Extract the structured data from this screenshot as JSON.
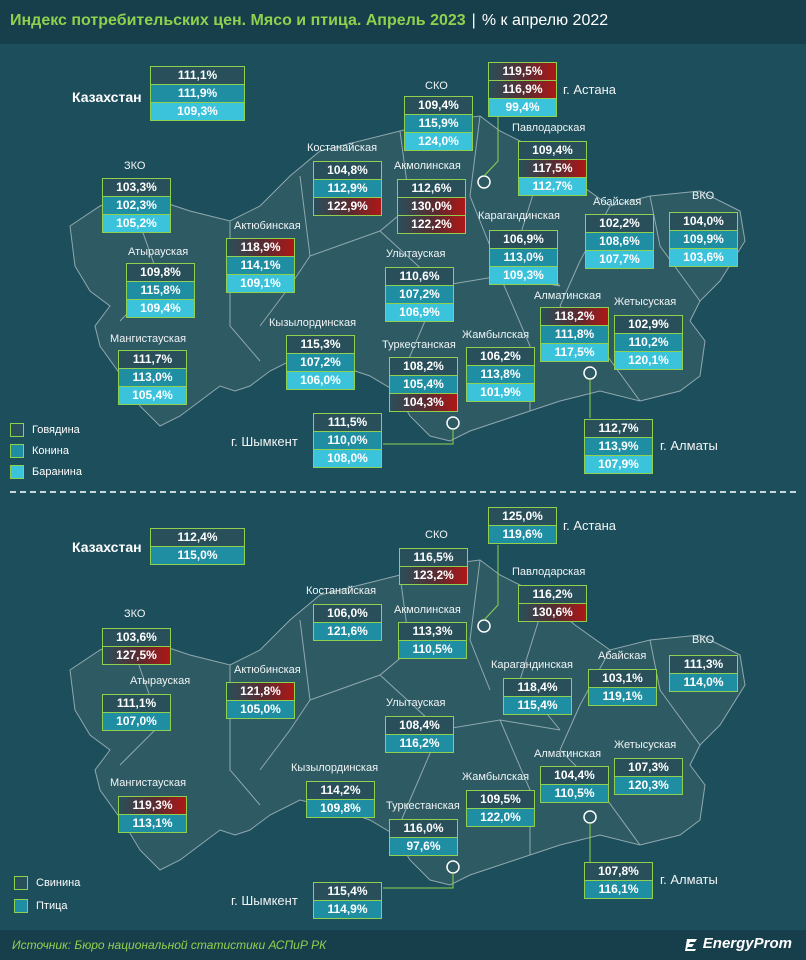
{
  "header": {
    "title": "Индекс потребительских цен. Мясо и птица. Апрель 2023",
    "separator": "|",
    "subtitle": "% к апрелю 2022"
  },
  "top_map": {
    "legend": [
      "Говядина",
      "Конина",
      "Баранина"
    ],
    "kazakhstan": {
      "label": "Казахстан",
      "values": [
        "111,1%",
        "111,9%",
        "109,3%"
      ]
    },
    "regions": [
      {
        "id": "zko",
        "name": "ЗКО",
        "values": [
          "103,3%",
          "102,3%",
          "105,2%"
        ]
      },
      {
        "id": "atyrau",
        "name": "Атырауская",
        "values": [
          "109,8%",
          "115,8%",
          "109,4%"
        ]
      },
      {
        "id": "mangystau",
        "name": "Мангистауская",
        "values": [
          "111,7%",
          "113,0%",
          "105,4%"
        ]
      },
      {
        "id": "aktobe",
        "name": "Актюбинская",
        "values": [
          "118,9%",
          "114,1%",
          "109,1%"
        ]
      },
      {
        "id": "kostanay",
        "name": "Костанайская",
        "values": [
          "104,8%",
          "112,9%",
          "122,9%"
        ]
      },
      {
        "id": "sko",
        "name": "СКО",
        "values": [
          "109,4%",
          "115,9%",
          "124,0%"
        ]
      },
      {
        "id": "akmola",
        "name": "Акмолинская",
        "values": [
          "112,6%",
          "130,0%",
          "122,2%"
        ]
      },
      {
        "id": "astana",
        "name": "г. Астана",
        "values": [
          "119,5%",
          "116,9%",
          "99,4%"
        ]
      },
      {
        "id": "pavlodar",
        "name": "Павлодарская",
        "values": [
          "109,4%",
          "117,5%",
          "112,7%"
        ]
      },
      {
        "id": "abay",
        "name": "Абайская",
        "values": [
          "102,2%",
          "108,6%",
          "107,7%"
        ]
      },
      {
        "id": "vko",
        "name": "ВКО",
        "values": [
          "104,0%",
          "109,9%",
          "103,6%"
        ]
      },
      {
        "id": "karaganda",
        "name": "Карагандинская",
        "values": [
          "106,9%",
          "113,0%",
          "109,3%"
        ]
      },
      {
        "id": "ulytau",
        "name": "Улытауская",
        "values": [
          "110,6%",
          "107,2%",
          "106,9%"
        ]
      },
      {
        "id": "kyzylorda",
        "name": "Кызылординская",
        "values": [
          "115,3%",
          "107,2%",
          "106,0%"
        ]
      },
      {
        "id": "turkestan",
        "name": "Туркестанская",
        "values": [
          "108,2%",
          "105,4%",
          "104,3%"
        ]
      },
      {
        "id": "zhambyl",
        "name": "Жамбылская",
        "values": [
          "106,2%",
          "113,8%",
          "101,9%"
        ]
      },
      {
        "id": "almaty_reg",
        "name": "Алматинская",
        "values": [
          "118,2%",
          "111,8%",
          "117,5%"
        ]
      },
      {
        "id": "zhetysu",
        "name": "Жетысуская",
        "values": [
          "102,9%",
          "110,2%",
          "120,1%"
        ]
      },
      {
        "id": "shymkent",
        "name": "г. Шымкент",
        "values": [
          "111,5%",
          "110,0%",
          "108,0%"
        ]
      },
      {
        "id": "almaty",
        "name": "г. Алматы",
        "values": [
          "112,7%",
          "113,9%",
          "107,9%"
        ]
      }
    ]
  },
  "bottom_map": {
    "legend": [
      "Свинина",
      "Птица"
    ],
    "kazakhstan": {
      "label": "Казахстан",
      "values": [
        "112,4%",
        "115,0%"
      ]
    },
    "regions": [
      {
        "id": "zko",
        "name": "ЗКО",
        "values": [
          "103,6%",
          "127,5%"
        ]
      },
      {
        "id": "atyrau",
        "name": "Атырауская",
        "values": [
          "111,1%",
          "107,0%"
        ]
      },
      {
        "id": "mangystau",
        "name": "Мангистауская",
        "values": [
          "119,3%",
          "113,1%"
        ]
      },
      {
        "id": "aktobe",
        "name": "Актюбинская",
        "values": [
          "121,8%",
          "105,0%"
        ]
      },
      {
        "id": "kostanay",
        "name": "Костанайская",
        "values": [
          "106,0%",
          "121,6%"
        ]
      },
      {
        "id": "sko",
        "name": "СКО",
        "values": [
          "116,5%",
          "123,2%"
        ]
      },
      {
        "id": "akmola",
        "name": "Акмолинская",
        "values": [
          "113,3%",
          "110,5%"
        ]
      },
      {
        "id": "astana",
        "name": "г. Астана",
        "values": [
          "125,0%",
          "119,6%"
        ]
      },
      {
        "id": "pavlodar",
        "name": "Павлодарская",
        "values": [
          "116,2%",
          "130,6%"
        ]
      },
      {
        "id": "abay",
        "name": "Абайская",
        "values": [
          "103,1%",
          "119,1%"
        ]
      },
      {
        "id": "vko",
        "name": "ВКО",
        "values": [
          "111,3%",
          "114,0%"
        ]
      },
      {
        "id": "karaganda",
        "name": "Карагандинская",
        "values": [
          "118,4%",
          "115,4%"
        ]
      },
      {
        "id": "ulytau",
        "name": "Улытауская",
        "values": [
          "108,4%",
          "116,2%"
        ]
      },
      {
        "id": "kyzylorda",
        "name": "Кызылординская",
        "values": [
          "114,2%",
          "109,8%"
        ]
      },
      {
        "id": "turkestan",
        "name": "Туркестанская",
        "values": [
          "116,0%",
          "97,6%"
        ]
      },
      {
        "id": "zhambyl",
        "name": "Жамбылская",
        "values": [
          "109,5%",
          "122,0%"
        ]
      },
      {
        "id": "almaty_reg",
        "name": "Алматинская",
        "values": [
          "104,4%",
          "110,5%"
        ]
      },
      {
        "id": "zhetysu",
        "name": "Жетысуская",
        "values": [
          "107,3%",
          "120,3%"
        ]
      },
      {
        "id": "shymkent",
        "name": "г. Шымкент",
        "values": [
          "115,4%",
          "114,9%"
        ]
      },
      {
        "id": "almaty",
        "name": "г. Алматы",
        "values": [
          "107,8%",
          "116,1%"
        ]
      }
    ]
  },
  "footer": {
    "source": "Источник: Бюро национальной статистики АСПиР РК",
    "logo": "EnergyProm"
  },
  "colors": {
    "background": "#1d4e5c",
    "map_fill": "#2e5a64",
    "accent_green": "#8fd14f",
    "series_1": "#284f5a",
    "series_2": "#1f8ea3",
    "series_3": "#3cc3dc",
    "highlight_red": "#b01717"
  }
}
